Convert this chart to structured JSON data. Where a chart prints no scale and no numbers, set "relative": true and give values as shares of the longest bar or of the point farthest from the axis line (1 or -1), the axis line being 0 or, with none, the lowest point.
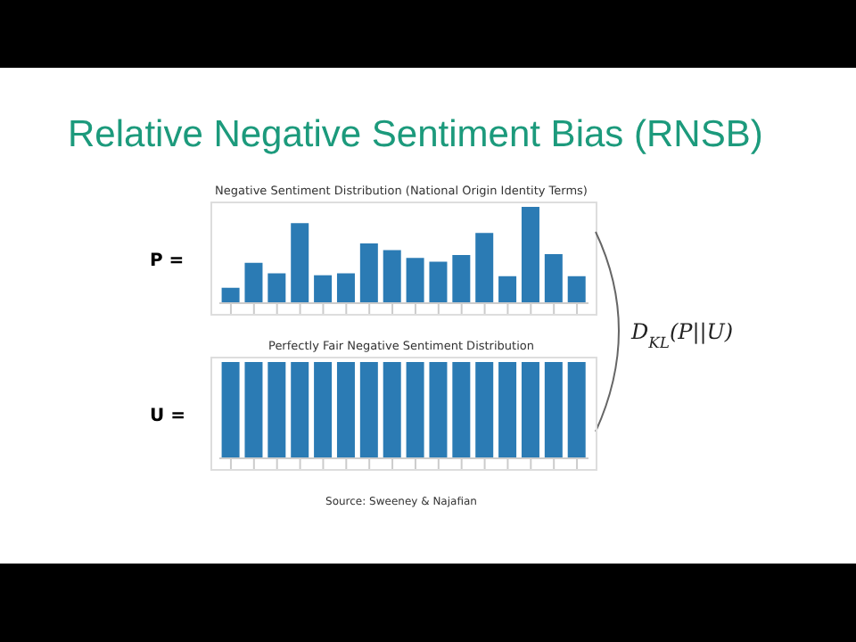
{
  "chart_data": [
    {
      "type": "bar",
      "title": "Relative Negative Sentiment Bias (RNSB)",
      "subtitle": "Negative Sentiment Distribution (National Origin Identity Terms)",
      "categories": [
        null,
        null,
        null,
        null,
        null,
        null,
        null,
        null,
        null,
        null,
        null,
        null,
        null,
        null,
        null,
        null
      ],
      "values": [
        0.16,
        0.42,
        0.31,
        0.83,
        0.29,
        0.31,
        0.62,
        0.55,
        0.47,
        0.43,
        0.5,
        0.73,
        0.28,
        1,
        0.51,
        0.28
      ],
      "color": "#2b7bb4",
      "relative": true,
      "annotations": [
        "P =",
        "D$_{KL}$(P||U)"
      ]
    },
    {
      "type": "bar",
      "title": "Perfectly Fair Negative Sentiment Distribution",
      "categories": [
        null,
        null,
        null,
        null,
        null,
        null,
        null,
        null,
        null,
        null,
        null,
        null,
        null,
        null,
        null,
        null
      ],
      "values": [
        1,
        1,
        1,
        1,
        1,
        1,
        1,
        1,
        1,
        1,
        1,
        1,
        1,
        1,
        1,
        1
      ],
      "color": "#2b7bb4",
      "relative": true,
      "annotations": [
        "U =",
        "Source: Sweeney & Najafian"
      ]
    }
  ]
}
